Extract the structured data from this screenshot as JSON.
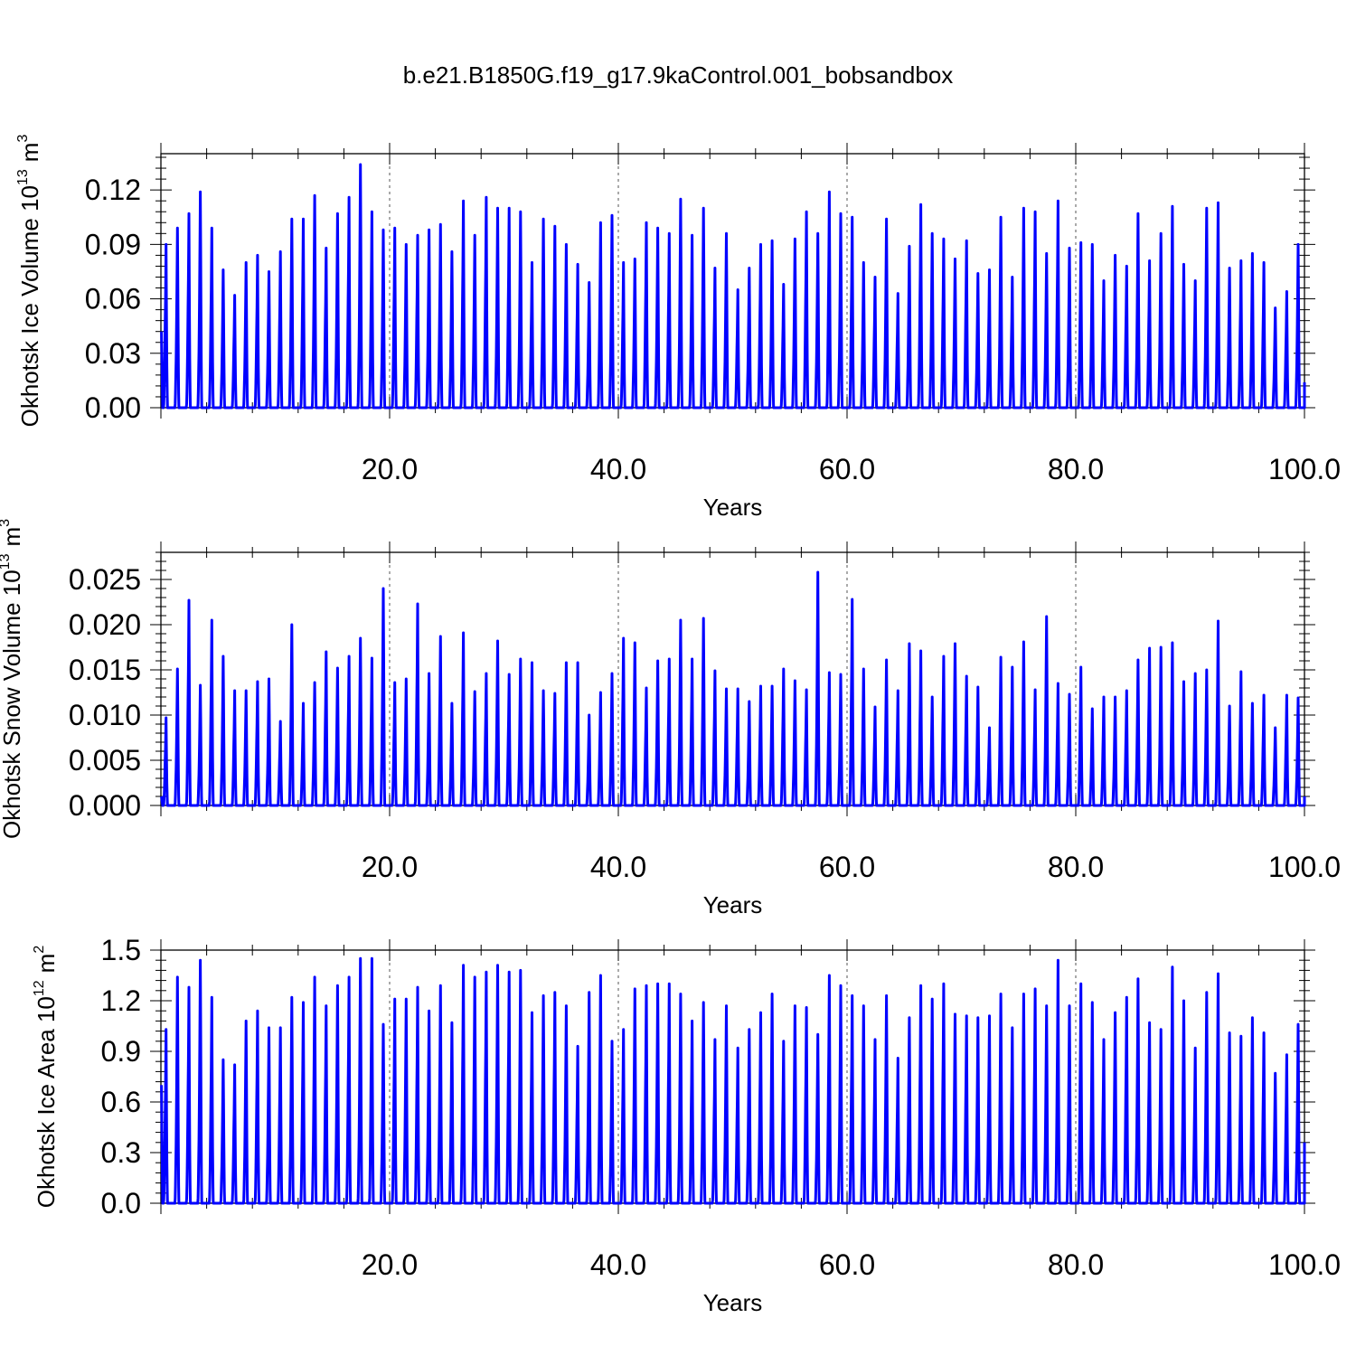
{
  "title": "b.e21.B1850G.f19_g17.9kaControl.001_bobsandbox",
  "line_color": "#0000ff",
  "peaks": {
    "volume": [
      0.09,
      0.099,
      0.107,
      0.119,
      0.099,
      0.076,
      0.062,
      0.08,
      0.084,
      0.075,
      0.086,
      0.104,
      0.104,
      0.117,
      0.088,
      0.107,
      0.116,
      0.134,
      0.108,
      0.098,
      0.099,
      0.09,
      0.095,
      0.098,
      0.101,
      0.086,
      0.114,
      0.095,
      0.116,
      0.11,
      0.11,
      0.108,
      0.08,
      0.104,
      0.1,
      0.09,
      0.079,
      0.069,
      0.102,
      0.106,
      0.08,
      0.082,
      0.102,
      0.099,
      0.096,
      0.115,
      0.095,
      0.11,
      0.077,
      0.096,
      0.065,
      0.077,
      0.09,
      0.092,
      0.068,
      0.093,
      0.108,
      0.096,
      0.119,
      0.107,
      0.105,
      0.08,
      0.072,
      0.104,
      0.063,
      0.089,
      0.112,
      0.096,
      0.093,
      0.082,
      0.092,
      0.074,
      0.076,
      0.105,
      0.072,
      0.11,
      0.108,
      0.085,
      0.114,
      0.088,
      0.091,
      0.09,
      0.07,
      0.084,
      0.078,
      0.107,
      0.081,
      0.096,
      0.111,
      0.079,
      0.07,
      0.11,
      0.113,
      0.077,
      0.081,
      0.085,
      0.08,
      0.055,
      0.064,
      0.09
    ],
    "snow": [
      0.0097,
      0.0151,
      0.0227,
      0.0133,
      0.0205,
      0.0165,
      0.0127,
      0.0127,
      0.0137,
      0.014,
      0.0093,
      0.02,
      0.0113,
      0.0136,
      0.017,
      0.0152,
      0.0165,
      0.0185,
      0.0163,
      0.024,
      0.0136,
      0.014,
      0.0223,
      0.0146,
      0.0187,
      0.0113,
      0.0191,
      0.0126,
      0.0146,
      0.0182,
      0.0145,
      0.0162,
      0.0158,
      0.0127,
      0.0124,
      0.0158,
      0.0158,
      0.01,
      0.0125,
      0.0146,
      0.0185,
      0.018,
      0.013,
      0.016,
      0.0162,
      0.0205,
      0.0162,
      0.0207,
      0.0149,
      0.0129,
      0.0129,
      0.0115,
      0.0132,
      0.0132,
      0.0151,
      0.0138,
      0.0128,
      0.0258,
      0.0147,
      0.0145,
      0.0228,
      0.0151,
      0.0109,
      0.0161,
      0.0127,
      0.0179,
      0.0171,
      0.012,
      0.0165,
      0.0179,
      0.0143,
      0.0131,
      0.0086,
      0.0164,
      0.0153,
      0.0181,
      0.0128,
      0.0209,
      0.0135,
      0.0123,
      0.0153,
      0.0107,
      0.012,
      0.012,
      0.0127,
      0.0161,
      0.0174,
      0.0175,
      0.018,
      0.0137,
      0.0146,
      0.015,
      0.0204,
      0.011,
      0.0148,
      0.0113,
      0.0122,
      0.0086,
      0.0122,
      0.0119
    ],
    "area": [
      1.03,
      1.34,
      1.28,
      1.44,
      1.22,
      0.85,
      0.82,
      1.08,
      1.14,
      1.04,
      1.04,
      1.22,
      1.19,
      1.34,
      1.17,
      1.29,
      1.34,
      1.45,
      1.45,
      1.06,
      1.21,
      1.21,
      1.28,
      1.14,
      1.29,
      1.07,
      1.41,
      1.34,
      1.37,
      1.41,
      1.37,
      1.38,
      1.13,
      1.23,
      1.25,
      1.17,
      0.93,
      1.25,
      1.35,
      0.96,
      1.03,
      1.27,
      1.29,
      1.3,
      1.3,
      1.24,
      1.08,
      1.19,
      0.97,
      1.17,
      0.92,
      1.03,
      1.13,
      1.24,
      0.96,
      1.17,
      1.16,
      1.0,
      1.35,
      1.29,
      1.23,
      1.17,
      0.97,
      1.23,
      0.86,
      1.1,
      1.29,
      1.21,
      1.3,
      1.12,
      1.11,
      1.1,
      1.11,
      1.24,
      1.04,
      1.24,
      1.27,
      1.17,
      1.44,
      1.17,
      1.3,
      1.19,
      0.97,
      1.13,
      1.22,
      1.33,
      1.07,
      1.03,
      1.4,
      1.2,
      0.92,
      1.25,
      1.36,
      1.01,
      0.99,
      1.1,
      1.01,
      0.77,
      0.88,
      1.06
    ]
  },
  "chart_data": [
    {
      "type": "line",
      "title": "b.e21.B1850G.f19_g17.9kaControl.001_bobsandbox",
      "xlabel": "Years",
      "ylabel": "Okhotsk Ice Volume 10",
      "ylabel_exp": "13",
      "ylabel_unit": "m",
      "ylabel_unit_exp": "3",
      "xlim": [
        0,
        100
      ],
      "ylim": [
        0,
        0.14
      ],
      "xticks": [
        "20.0",
        "40.0",
        "60.0",
        "80.0",
        "100.0"
      ],
      "yticks": [
        "0.00",
        "0.03",
        "0.06",
        "0.09",
        "0.12"
      ],
      "ytick_values": [
        0,
        0.03,
        0.06,
        0.09,
        0.12
      ],
      "grid": "vertical dashed at 20, 40, 60, 80",
      "series_key": "volume",
      "start_value": 0.042,
      "end_value": 0.014
    },
    {
      "type": "line",
      "xlabel": "Years",
      "ylabel": "Okhotsk Snow Volume 10",
      "ylabel_exp": "13",
      "ylabel_unit": "m",
      "ylabel_unit_exp": "3",
      "xlim": [
        0,
        100
      ],
      "ylim": [
        0,
        0.028
      ],
      "xticks": [
        "20.0",
        "40.0",
        "60.0",
        "80.0",
        "100.0"
      ],
      "yticks": [
        "0.000",
        "0.005",
        "0.010",
        "0.015",
        "0.020",
        "0.025"
      ],
      "ytick_values": [
        0,
        0.005,
        0.01,
        0.015,
        0.02,
        0.025
      ],
      "grid": "vertical dashed at 20, 40, 60, 80",
      "series_key": "snow",
      "start_value": 0.001,
      "end_value": 0.001
    },
    {
      "type": "line",
      "xlabel": "Years",
      "ylabel": "Okhotsk Ice Area 10",
      "ylabel_exp": "12",
      "ylabel_unit": "m",
      "ylabel_unit_exp": "2",
      "xlim": [
        0,
        100
      ],
      "ylim": [
        0,
        1.5
      ],
      "xticks": [
        "20.0",
        "40.0",
        "60.0",
        "80.0",
        "100.0"
      ],
      "yticks": [
        "0.0",
        "0.3",
        "0.6",
        "0.9",
        "1.2",
        "1.5"
      ],
      "ytick_values": [
        0,
        0.3,
        0.6,
        0.9,
        1.2,
        1.5
      ],
      "grid": "vertical dashed at 20, 40, 60, 80",
      "series_key": "area",
      "start_value": 0.7,
      "end_value": 0.36
    }
  ]
}
